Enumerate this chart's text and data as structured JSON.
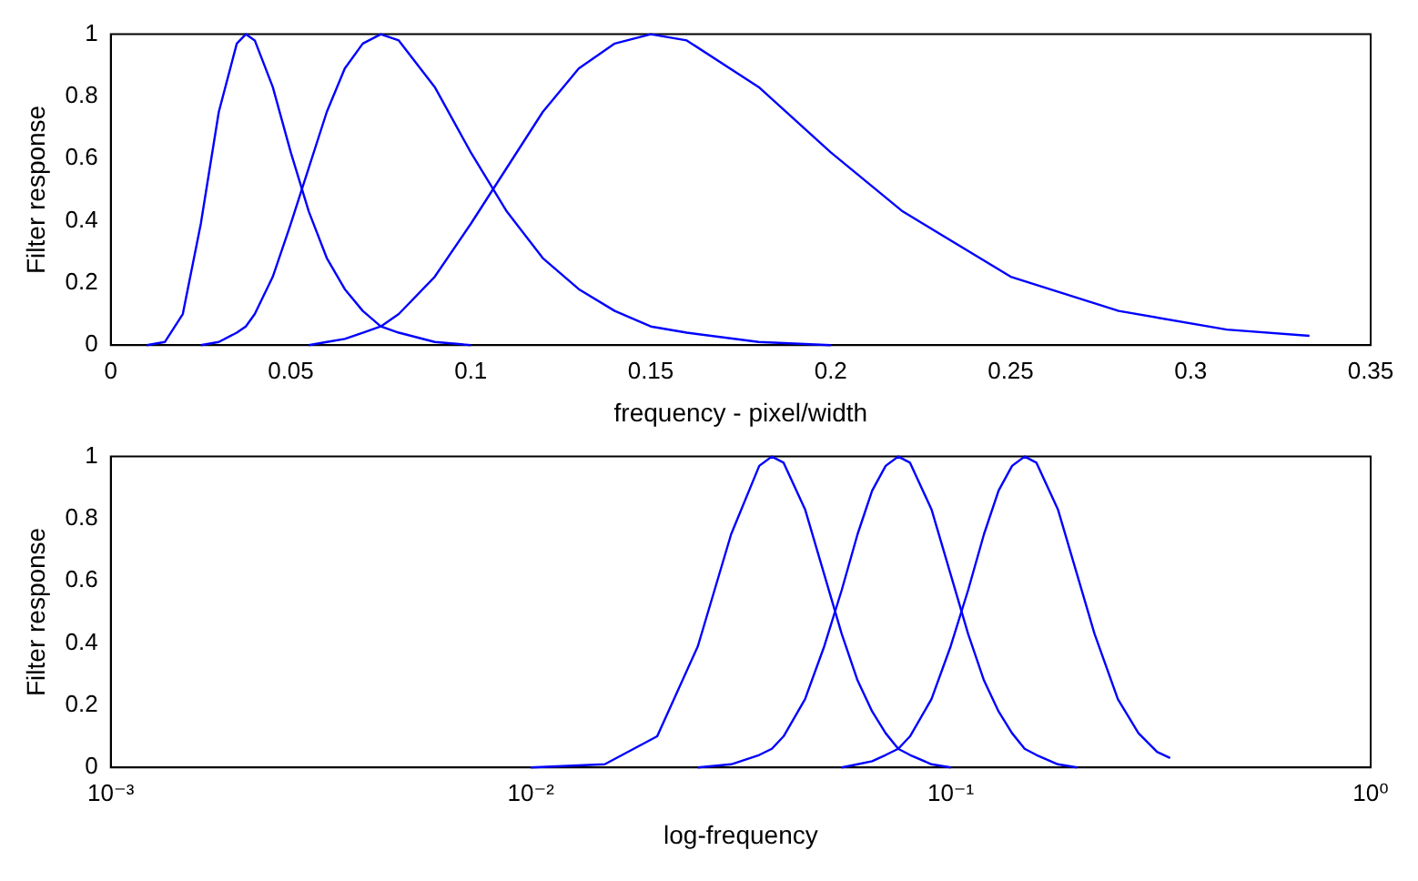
{
  "chart_data": [
    {
      "type": "line",
      "xlabel": "frequency - pixel/width",
      "ylabel": "Filter response",
      "x": [
        0.01,
        0.015,
        0.02,
        0.025,
        0.03,
        0.035,
        0.0375,
        0.04,
        0.045,
        0.05,
        0.055,
        0.06,
        0.065,
        0.07,
        0.075,
        0.08,
        0.09,
        0.1,
        0.11,
        0.12,
        0.13,
        0.14,
        0.15,
        0.16,
        0.18,
        0.2,
        0.22,
        0.25,
        0.28,
        0.31,
        0.333
      ],
      "series": [
        {
          "color": "#0000ff",
          "values": [
            0,
            0.01,
            0.1,
            0.39,
            0.75,
            0.97,
            1,
            0.98,
            0.83,
            0.62,
            0.43,
            0.28,
            0.18,
            0.11,
            0.06,
            0.04,
            0.01,
            0,
            null,
            null,
            null,
            null,
            null,
            null,
            null,
            null,
            null,
            null,
            null,
            null,
            null
          ]
        },
        {
          "color": "#0000ff",
          "values": [
            null,
            null,
            null,
            0,
            0.01,
            0.04,
            0.06,
            0.1,
            0.22,
            0.39,
            0.57,
            0.75,
            0.89,
            0.97,
            1,
            0.98,
            0.83,
            0.62,
            0.43,
            0.28,
            0.18,
            0.11,
            0.06,
            0.04,
            0.01,
            0,
            null,
            null,
            null,
            null,
            null
          ]
        },
        {
          "color": "#0000ff",
          "values": [
            null,
            null,
            null,
            null,
            null,
            null,
            null,
            null,
            null,
            null,
            0,
            0.01,
            0.02,
            0.04,
            0.06,
            0.1,
            0.22,
            0.39,
            0.57,
            0.75,
            0.89,
            0.97,
            1,
            0.98,
            0.83,
            0.62,
            0.43,
            0.22,
            0.11,
            0.05,
            0.03
          ]
        }
      ],
      "xlim": [
        0,
        0.35
      ],
      "xticks": [
        0,
        0.05,
        0.1,
        0.15,
        0.2,
        0.25,
        0.3,
        0.35
      ],
      "ylim": [
        0,
        1
      ],
      "yticks": [
        0,
        0.2,
        0.4,
        0.6,
        0.8,
        1
      ],
      "marker": "none",
      "line_style": "solid",
      "grid": false,
      "legend": false
    },
    {
      "type": "line",
      "xlabel": "log-frequency",
      "ylabel": "Filter response",
      "x": [
        0.01,
        0.015,
        0.02,
        0.025,
        0.03,
        0.035,
        0.0375,
        0.04,
        0.045,
        0.05,
        0.055,
        0.06,
        0.065,
        0.07,
        0.075,
        0.08,
        0.09,
        0.1,
        0.11,
        0.12,
        0.13,
        0.14,
        0.15,
        0.16,
        0.18,
        0.2,
        0.22,
        0.25,
        0.28,
        0.31,
        0.333
      ],
      "series": [
        {
          "color": "#0000ff",
          "values": [
            0,
            0.01,
            0.1,
            0.39,
            0.75,
            0.97,
            1,
            0.98,
            0.83,
            0.62,
            0.43,
            0.28,
            0.18,
            0.11,
            0.06,
            0.04,
            0.01,
            0,
            null,
            null,
            null,
            null,
            null,
            null,
            null,
            null,
            null,
            null,
            null,
            null,
            null
          ]
        },
        {
          "color": "#0000ff",
          "values": [
            null,
            null,
            null,
            0,
            0.01,
            0.04,
            0.06,
            0.1,
            0.22,
            0.39,
            0.57,
            0.75,
            0.89,
            0.97,
            1,
            0.98,
            0.83,
            0.62,
            0.43,
            0.28,
            0.18,
            0.11,
            0.06,
            0.04,
            0.01,
            0,
            null,
            null,
            null,
            null,
            null
          ]
        },
        {
          "color": "#0000ff",
          "values": [
            null,
            null,
            null,
            null,
            null,
            null,
            null,
            null,
            null,
            null,
            0,
            0.01,
            0.02,
            0.04,
            0.06,
            0.1,
            0.22,
            0.39,
            0.57,
            0.75,
            0.89,
            0.97,
            1,
            0.98,
            0.83,
            0.62,
            0.43,
            0.22,
            0.11,
            0.05,
            0.03
          ]
        }
      ],
      "log": "x",
      "xlim": [
        0.001,
        1
      ],
      "xticks": [
        {
          "value": 0.001,
          "label": "10⁻³"
        },
        {
          "value": 0.01,
          "label": "10⁻²"
        },
        {
          "value": 0.1,
          "label": "10⁻¹"
        },
        {
          "value": 1,
          "label": "10⁰"
        }
      ],
      "ylim": [
        0,
        1
      ],
      "yticks": [
        0,
        0.2,
        0.4,
        0.6,
        0.8,
        1
      ],
      "marker": "none",
      "line_style": "solid",
      "grid": false,
      "legend": false
    }
  ]
}
